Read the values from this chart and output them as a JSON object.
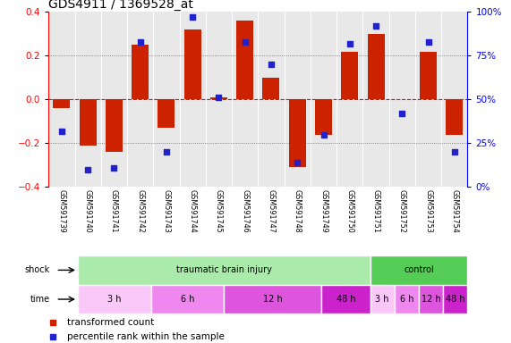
{
  "title": "GDS4911 / 1369528_at",
  "samples": [
    "GSM591739",
    "GSM591740",
    "GSM591741",
    "GSM591742",
    "GSM591743",
    "GSM591744",
    "GSM591745",
    "GSM591746",
    "GSM591747",
    "GSM591748",
    "GSM591749",
    "GSM591750",
    "GSM591751",
    "GSM591752",
    "GSM591753",
    "GSM591754"
  ],
  "transformed_count": [
    -0.04,
    -0.21,
    -0.24,
    0.25,
    -0.13,
    0.32,
    0.01,
    0.36,
    0.1,
    -0.31,
    -0.16,
    0.22,
    0.3,
    0.0,
    0.22,
    -0.16
  ],
  "percentile_rank": [
    32,
    10,
    11,
    83,
    20,
    97,
    51,
    83,
    70,
    14,
    30,
    82,
    92,
    42,
    83,
    20
  ],
  "bar_color": "#cc2200",
  "dot_color": "#2222cc",
  "ylim_left": [
    -0.4,
    0.4
  ],
  "ylim_right": [
    0,
    100
  ],
  "yticks_left": [
    -0.4,
    -0.2,
    0.0,
    0.2,
    0.4
  ],
  "yticks_right": [
    0,
    25,
    50,
    75,
    100
  ],
  "shock_groups": [
    {
      "label": "traumatic brain injury",
      "start": 0,
      "end": 12,
      "color": "#aaeaaa"
    },
    {
      "label": "control",
      "start": 12,
      "end": 16,
      "color": "#55cc55"
    }
  ],
  "time_groups": [
    {
      "label": "3 h",
      "start": 0,
      "end": 3,
      "color": "#f9c8f9"
    },
    {
      "label": "6 h",
      "start": 3,
      "end": 6,
      "color": "#ee88ee"
    },
    {
      "label": "12 h",
      "start": 6,
      "end": 10,
      "color": "#dd55dd"
    },
    {
      "label": "48 h",
      "start": 10,
      "end": 12,
      "color": "#cc22cc"
    },
    {
      "label": "3 h",
      "start": 12,
      "end": 13,
      "color": "#f9c8f9"
    },
    {
      "label": "6 h",
      "start": 13,
      "end": 14,
      "color": "#ee88ee"
    },
    {
      "label": "12 h",
      "start": 14,
      "end": 15,
      "color": "#dd55dd"
    },
    {
      "label": "48 h",
      "start": 15,
      "end": 16,
      "color": "#cc22cc"
    }
  ],
  "cell_bg": "#cccccc",
  "plot_bg": "#e8e8e8"
}
